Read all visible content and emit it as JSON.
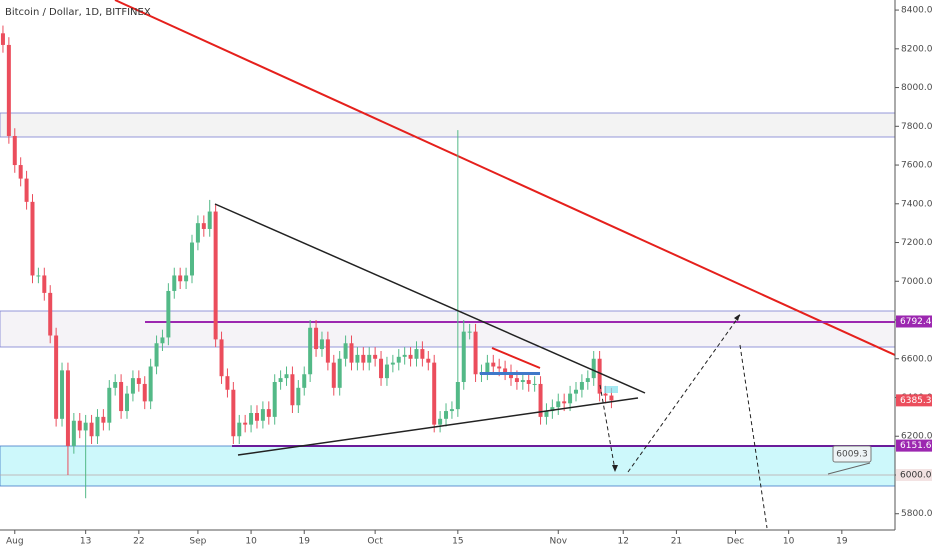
{
  "chart_data": {
    "type": "candlestick",
    "title": "Bitcoin / Dollar, 1D, BITFINEX",
    "x": [
      -2,
      -1,
      0,
      1,
      2,
      3,
      4,
      5,
      6,
      7,
      8,
      9,
      10,
      11,
      12,
      13,
      14,
      15,
      16,
      17,
      18,
      19,
      20,
      21,
      22,
      23,
      24,
      25,
      26,
      27,
      28,
      29,
      30,
      31,
      32,
      33,
      34,
      35,
      36,
      37,
      38,
      39,
      40,
      41,
      42,
      43,
      44,
      45,
      46,
      47,
      48,
      49,
      50,
      51,
      52,
      53,
      54,
      55,
      56,
      57,
      58,
      59,
      60,
      61,
      62,
      63,
      64,
      65,
      66,
      67,
      68,
      69,
      70,
      71,
      72,
      73,
      74,
      75,
      76,
      77,
      78,
      79,
      80,
      81,
      82,
      83,
      84,
      85,
      86,
      87,
      88,
      89,
      90,
      91,
      92,
      93,
      94,
      95,
      96,
      97,
      98,
      99,
      100,
      101
    ],
    "open": [
      8280,
      8220,
      7750,
      7600,
      7530,
      7410,
      7030,
      7030,
      6940,
      6720,
      6290,
      6540,
      6150,
      6280,
      6230,
      6270,
      6200,
      6300,
      6270,
      6450,
      6480,
      6330,
      6420,
      6500,
      6470,
      6380,
      6560,
      6680,
      6710,
      6950,
      7030,
      7000,
      7030,
      7200,
      7300,
      7270,
      7360,
      6700,
      6510,
      6440,
      6200,
      6270,
      6260,
      6320,
      6280,
      6340,
      6300,
      6480,
      6500,
      6520,
      6360,
      6450,
      6520,
      6760,
      6650,
      6700,
      6580,
      6450,
      6600,
      6680,
      6580,
      6620,
      6580,
      6620,
      6600,
      6500,
      6570,
      6580,
      6610,
      6620,
      6600,
      6650,
      6600,
      6580,
      6260,
      6290,
      6330,
      6340,
      6480,
      6740,
      6740,
      6520,
      6530,
      6580,
      6560,
      6550,
      6530,
      6500,
      6480,
      6490,
      6470,
      6470,
      6300,
      6330,
      6350,
      6380,
      6370,
      6420,
      6440,
      6480,
      6500,
      6600,
      6420,
      6410
    ],
    "high": [
      8320,
      8260,
      7790,
      7640,
      7570,
      7450,
      7070,
      7070,
      6980,
      6760,
      6580,
      6580,
      6320,
      6320,
      6310,
      6310,
      6340,
      6340,
      6490,
      6520,
      6520,
      6460,
      6540,
      6540,
      6510,
      6600,
      6720,
      6750,
      6990,
      7070,
      7070,
      7070,
      7240,
      7340,
      7340,
      7420,
      7400,
      6740,
      6550,
      6480,
      6310,
      6310,
      6360,
      6360,
      6380,
      6380,
      6520,
      6540,
      6560,
      6560,
      6490,
      6560,
      6800,
      6800,
      6740,
      6740,
      6620,
      6640,
      6720,
      6720,
      6660,
      6660,
      6660,
      6660,
      6640,
      6610,
      6620,
      6650,
      6660,
      6660,
      6690,
      6690,
      6640,
      6620,
      6330,
      6370,
      6380,
      7780,
      6800,
      6780,
      6780,
      6570,
      6620,
      6620,
      6600,
      6590,
      6570,
      6540,
      6530,
      6530,
      6510,
      6510,
      6370,
      6390,
      6420,
      6420,
      6460,
      6480,
      6520,
      6540,
      6640,
      6640,
      6460,
      6450
    ],
    "low": [
      8180,
      7710,
      7560,
      7490,
      7370,
      6990,
      6990,
      6900,
      6680,
      6250,
      6250,
      6000,
      6110,
      6190,
      5880,
      6160,
      6160,
      6230,
      6230,
      6410,
      6290,
      6290,
      6380,
      6430,
      6340,
      6340,
      6520,
      6640,
      6670,
      6910,
      6960,
      6960,
      6990,
      7160,
      7230,
      7230,
      6660,
      6470,
      6400,
      6160,
      6160,
      6220,
      6220,
      6240,
      6240,
      6260,
      6260,
      6440,
      6460,
      6320,
      6320,
      6410,
      6480,
      6610,
      6610,
      6540,
      6410,
      6410,
      6560,
      6540,
      6540,
      6540,
      6540,
      6560,
      6460,
      6460,
      6530,
      6540,
      6570,
      6560,
      6560,
      6560,
      6540,
      6220,
      6220,
      6250,
      6290,
      6300,
      6440,
      6700,
      6480,
      6480,
      6490,
      6520,
      6510,
      6490,
      6460,
      6440,
      6440,
      6430,
      6430,
      6260,
      6260,
      6290,
      6310,
      6330,
      6330,
      6380,
      6400,
      6440,
      6460,
      6380,
      6370,
      6345
    ],
    "close": [
      8220,
      7750,
      7600,
      7530,
      7410,
      7030,
      7030,
      6940,
      6720,
      6290,
      6540,
      6150,
      6280,
      6230,
      6270,
      6200,
      6300,
      6270,
      6450,
      6480,
      6330,
      6420,
      6500,
      6470,
      6380,
      6560,
      6680,
      6710,
      6950,
      7030,
      7000,
      7030,
      7200,
      7300,
      7270,
      7360,
      6700,
      6510,
      6440,
      6200,
      6270,
      6260,
      6320,
      6280,
      6340,
      6300,
      6480,
      6500,
      6520,
      6360,
      6450,
      6520,
      6760,
      6650,
      6700,
      6580,
      6450,
      6600,
      6680,
      6580,
      6620,
      6580,
      6620,
      6600,
      6500,
      6570,
      6580,
      6610,
      6620,
      6600,
      6650,
      6600,
      6580,
      6260,
      6290,
      6330,
      6340,
      6480,
      6740,
      6740,
      6520,
      6530,
      6580,
      6560,
      6550,
      6530,
      6500,
      6480,
      6490,
      6470,
      6470,
      6300,
      6330,
      6350,
      6380,
      6370,
      6420,
      6440,
      6480,
      6500,
      6600,
      6420,
      6410,
      6385
    ],
    "up_color": "#53b987",
    "down_color": "#eb4d5c",
    "xlim": [
      -2.5,
      149
    ],
    "xticks": [
      {
        "value": 0,
        "label": "Aug"
      },
      {
        "value": 12,
        "label": "13"
      },
      {
        "value": 21,
        "label": "22"
      },
      {
        "value": 31,
        "label": "Sep"
      },
      {
        "value": 40,
        "label": "10"
      },
      {
        "value": 49,
        "label": "19"
      },
      {
        "value": 61,
        "label": "Oct"
      },
      {
        "value": 75,
        "label": "15"
      },
      {
        "value": 92,
        "label": "Nov"
      },
      {
        "value": 103,
        "label": "12"
      },
      {
        "value": 112,
        "label": "21"
      },
      {
        "value": 122,
        "label": "Dec"
      },
      {
        "value": 131,
        "label": "10"
      },
      {
        "value": 140,
        "label": "19"
      }
    ],
    "ylim": [
      5716,
      8452
    ],
    "yticks": [
      {
        "value": 5800,
        "label": "5800.0"
      },
      {
        "value": 6000,
        "label": "6000.0"
      },
      {
        "value": 6200,
        "label": "6200.0"
      },
      {
        "value": 6400,
        "label": "6400.0"
      },
      {
        "value": 6600,
        "label": "6600.0"
      },
      {
        "value": 6800,
        "label": "6800.0"
      },
      {
        "value": 7000,
        "label": "7000.0"
      },
      {
        "value": 7200,
        "label": "7200.0"
      },
      {
        "value": 7400,
        "label": "7400.0"
      },
      {
        "value": 7600,
        "label": "7600.0"
      },
      {
        "value": 7800,
        "label": "7800.0"
      },
      {
        "value": 8000,
        "label": "8000.0"
      },
      {
        "value": 8200,
        "label": "8200.0"
      },
      {
        "value": 8400,
        "label": "8400.0"
      }
    ],
    "price_labels": [
      {
        "value": 6792.4,
        "color": "#9c27b0"
      },
      {
        "value": 6385.3,
        "color": "#eb4d5c"
      },
      {
        "value": 6151.6,
        "color": "#9c27b0"
      },
      {
        "value": {
          "value": 6000,
          "label": "6000.0"
        },
        "color": "#f3e3e3"
      }
    ],
    "callout": "6009.3"
  }
}
